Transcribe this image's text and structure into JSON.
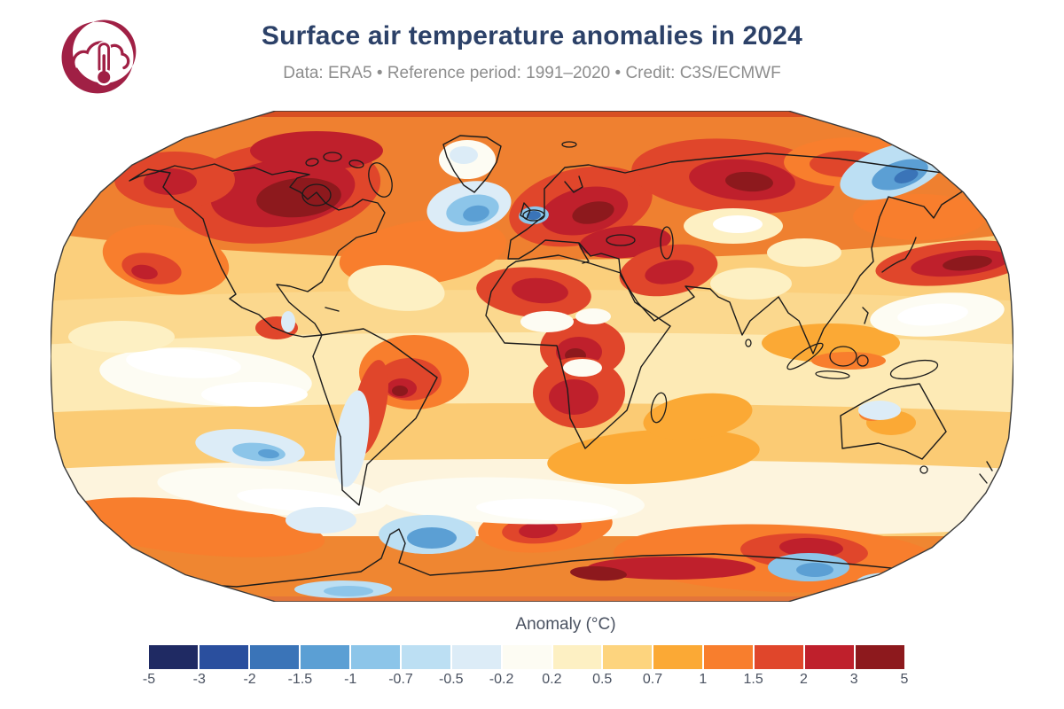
{
  "header": {
    "title": "Surface air temperature anomalies in 2024",
    "subtitle": "Data: ERA5 • Reference period: 1991–2020 • Credit: C3S/ECMWF",
    "logo_name": "copernicus-climate-cloud-thermometer"
  },
  "legend": {
    "label": "Anomaly (°C)",
    "tick_labels": [
      "-5",
      "-3",
      "-2",
      "-1.5",
      "-1",
      "-0.7",
      "-0.5",
      "-0.2",
      "0.2",
      "0.5",
      "0.7",
      "1",
      "1.5",
      "2",
      "3",
      "5"
    ],
    "segment_colors": [
      "#1f2a63",
      "#2a4f9e",
      "#3a74b8",
      "#5b9fd4",
      "#8cc5e9",
      "#bcdff3",
      "#dcecf7",
      "#fdfcf3",
      "#fdf0c3",
      "#fdd47e",
      "#fba935",
      "#f87e2d",
      "#e0462b",
      "#bf202c",
      "#8d191d"
    ]
  },
  "colors": {
    "title_text": "#2c4168",
    "subtitle_text": "#8d8d8d",
    "tick_text": "#4a5261",
    "logo": "#a02045",
    "coastline": "#1b1b1b",
    "map_outline": "#3a3a3a",
    "background": "#ffffff"
  },
  "chart_data": {
    "type": "heatmap",
    "title": "Surface air temperature anomalies in 2024",
    "subtitle": "Data: ERA5 • Reference period: 1991–2020 • Credit: C3S/ECMWF",
    "projection": "Robinson world map",
    "variable": "Surface air temperature anomaly (°C) relative to 1991–2020",
    "colorbar_label": "Anomaly (°C)",
    "scale_breaks_degC": [
      -5,
      -3,
      -2,
      -1.5,
      -1,
      -0.7,
      -0.5,
      -0.2,
      0.2,
      0.5,
      0.7,
      1,
      1.5,
      2,
      3,
      5
    ],
    "scale_colors": [
      "#1f2a63",
      "#2a4f9e",
      "#3a74b8",
      "#5b9fd4",
      "#8cc5e9",
      "#bcdff3",
      "#dcecf7",
      "#fdfcf3",
      "#fdf0c3",
      "#fdd47e",
      "#fba935",
      "#f87e2d",
      "#e0462b",
      "#bf202c",
      "#8d191d"
    ],
    "legend_position": "bottom",
    "notable_features": [
      "Strong warm anomalies (+3 to +5 °C) over Arctic Canada, Hudson Bay and Baffin Island",
      "Dark red warm anomalies over eastern Europe, the Mediterranean, the Sahara and central Africa",
      "Warm anomalies (+2 to +5 °C) across western Siberia and the Middle East",
      "Dark red warm band in the northwest Pacific east of Japan",
      "Warm anomalies over much of Antarctica and the far South Atlantic",
      "Cool anomalies (-0.5 to -2 °C) south of Greenland and around Iceland",
      "Cool anomalies in the Bering Sea / Sea of Okhotsk and Chukchi region",
      "Scattered cool patches in the Southern Ocean and southeast Pacific",
      "Near-normal (white) bands in the equatorial/southeast Pacific and Southern Ocean",
      "Most oceans show +0.2 to +1 °C warm anomalies (yellow to orange)"
    ]
  }
}
